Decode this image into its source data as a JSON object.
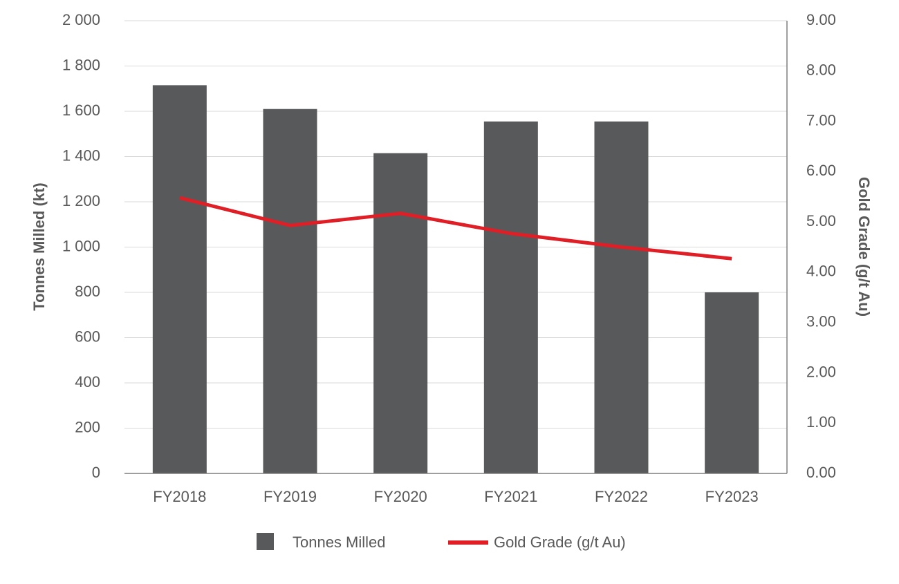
{
  "chart_data": {
    "type": "bar",
    "categories": [
      "FY2018",
      "FY2019",
      "FY2020",
      "FY2021",
      "FY2022",
      "FY2023"
    ],
    "series": [
      {
        "name": "Tonnes Milled",
        "type": "bar",
        "axis": "left",
        "values": [
          1715,
          1610,
          1415,
          1555,
          1555,
          800
        ]
      },
      {
        "name": "Gold Grade (g/t Au)",
        "type": "line",
        "axis": "right",
        "values": [
          5.48,
          4.93,
          5.17,
          4.77,
          4.5,
          4.27
        ]
      }
    ],
    "ylabel": "Tonnes Milled (kt)",
    "ylabel_right": "Gold Grade (g/t Au)",
    "ylim": [
      0,
      2000
    ],
    "ylim_right": [
      0,
      9
    ],
    "yticks": [
      "0",
      "200",
      "400",
      "600",
      "800",
      "1 000",
      "1 200",
      "1 400",
      "1 600",
      "1 800",
      "2 000"
    ],
    "yticks_right": [
      "0.00",
      "1.00",
      "2.00",
      "3.00",
      "4.00",
      "5.00",
      "6.00",
      "7.00",
      "8.00",
      "9.00"
    ],
    "grid": true,
    "legend_position": "bottom-center",
    "colors": {
      "bar": "#58595b",
      "line": "#e01e26",
      "grid": "#d9d9d9",
      "axis": "#7f7f7f",
      "text": "#595959"
    }
  }
}
